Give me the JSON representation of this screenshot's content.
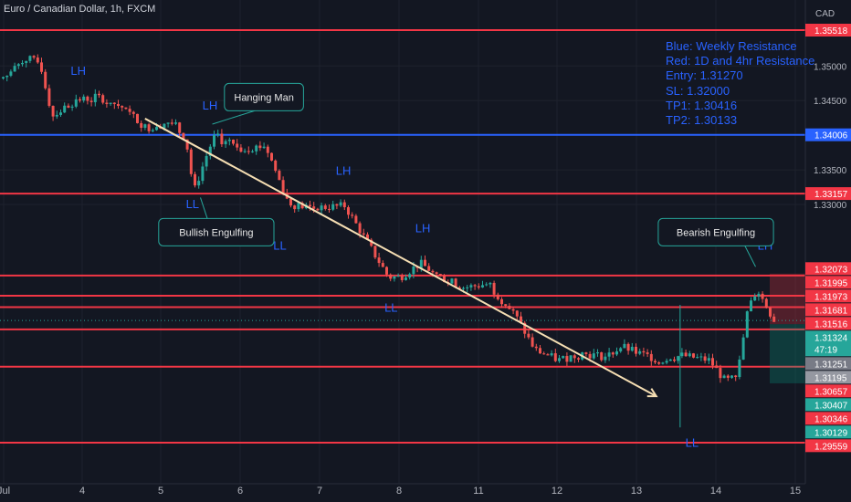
{
  "header": {
    "title": "Euro / Canadian Dollar, 1h, FXCM",
    "currency": "CAD"
  },
  "notes": [
    "Blue: Weekly Resistance",
    "Red: 1D and 4hr Resistance",
    "Entry: 1.31270",
    "SL: 1.32000",
    "TP1: 1.30416",
    "TP2: 1.30133"
  ],
  "colors": {
    "background": "#131722",
    "bull": "#26a69a",
    "bear": "#ef5350",
    "resistance_red": "#f23645",
    "resistance_blue": "#2962ff",
    "trendline": "#f5deb3",
    "callout_border": "#26a69a",
    "axis_text": "#b2b5be",
    "label_text": "#2962ff"
  },
  "chart_data": {
    "type": "candlestick",
    "symbol": "EURCAD",
    "timeframe": "1h",
    "x_ticks": [
      "Jul",
      "4",
      "5",
      "6",
      "7",
      "8",
      "11",
      "12",
      "13",
      "14",
      "15"
    ],
    "y_ticks": [
      "1.35000",
      "1.34500",
      "1.33500",
      "1.33000"
    ],
    "ylim": [
      1.2935,
      1.3585
    ],
    "horizontal_levels": [
      {
        "price": 1.35518,
        "color": "red"
      },
      {
        "price": 1.34006,
        "color": "blue"
      },
      {
        "price": 1.33157,
        "color": "red"
      },
      {
        "price": 1.31973,
        "color": "red"
      },
      {
        "price": 1.31681,
        "color": "red"
      },
      {
        "price": 1.31516,
        "color": "red"
      },
      {
        "price": 1.31195,
        "color": "red"
      },
      {
        "price": 1.30657,
        "color": "red"
      },
      {
        "price": 1.29559,
        "color": "red"
      }
    ],
    "price_labels": [
      {
        "text": "1.35518",
        "price": 1.35518,
        "bg": "#f23645"
      },
      {
        "text": "1.34006",
        "price": 1.34006,
        "bg": "#2962ff"
      },
      {
        "text": "1.33157",
        "price": 1.33157,
        "bg": "#f23645"
      },
      {
        "text": "1.32073",
        "price": 1.32073,
        "bg": "#f23645"
      },
      {
        "text": "1.31995",
        "price": 1.31995,
        "bg": "#f23645"
      },
      {
        "text": "1.31973",
        "price": 1.31973,
        "bg": "#f23645"
      },
      {
        "text": "1.31681",
        "price": 1.31681,
        "bg": "#f23645"
      },
      {
        "text": "1.31516",
        "price": 1.31516,
        "bg": "#f23645"
      },
      {
        "text": "1.31324",
        "price": 1.31324,
        "bg": "#26a69a",
        "sub": "47:19"
      },
      {
        "text": "1.31251",
        "price": 1.31251,
        "bg": "#787b86"
      },
      {
        "text": "1.31195",
        "price": 1.31195,
        "bg": "#9598a1"
      },
      {
        "text": "1.30657",
        "price": 1.30657,
        "bg": "#f23645"
      },
      {
        "text": "1.30407",
        "price": 1.30407,
        "bg": "#26a69a"
      },
      {
        "text": "1.30346",
        "price": 1.30346,
        "bg": "#f23645"
      },
      {
        "text": "1.30129",
        "price": 1.30129,
        "bg": "#26a69a"
      },
      {
        "text": "1.29559",
        "price": 1.29559,
        "bg": "#f23645"
      }
    ],
    "trend_labels": [
      {
        "text": "LH",
        "day": 0.95,
        "price": 1.3487
      },
      {
        "text": "LH",
        "day": 2.62,
        "price": 1.3437
      },
      {
        "text": "LL",
        "day": 2.4,
        "price": 1.3295
      },
      {
        "text": "LH",
        "day": 4.3,
        "price": 1.3343
      },
      {
        "text": "LL",
        "day": 3.5,
        "price": 1.3235
      },
      {
        "text": "LH",
        "day": 5.3,
        "price": 1.326
      },
      {
        "text": "LL",
        "day": 4.9,
        "price": 1.3145
      },
      {
        "text": "LH",
        "day": 9.62,
        "price": 1.3235
      },
      {
        "text": "LL",
        "day": 8.7,
        "price": 1.295
      }
    ],
    "callouts": [
      {
        "text": "Hanging Man",
        "day": 3.3,
        "price": 1.3455
      },
      {
        "text": "Bullish Engulfing",
        "day": 2.7,
        "price": 1.326
      },
      {
        "text": "Bearish Engulfing",
        "day": 9.0,
        "price": 1.326
      }
    ],
    "trendline": {
      "from": {
        "day": 1.8,
        "price": 1.3424
      },
      "to": {
        "day": 8.25,
        "price": 1.3023
      }
    },
    "position": {
      "entry": 1.3127,
      "stop_loss": 1.32,
      "take_profit": 1.30416
    },
    "candle_path": [
      [
        0.0,
        1.3482
      ],
      [
        0.25,
        1.3512
      ],
      [
        0.45,
        1.3503
      ],
      [
        0.6,
        1.3428
      ],
      [
        0.9,
        1.345
      ],
      [
        1.2,
        1.3455
      ],
      [
        1.5,
        1.344
      ],
      [
        1.8,
        1.341
      ],
      [
        2.1,
        1.342
      ],
      [
        2.3,
        1.3395
      ],
      [
        2.4,
        1.3318
      ],
      [
        2.55,
        1.3368
      ],
      [
        2.65,
        1.3397
      ],
      [
        3.0,
        1.338
      ],
      [
        3.3,
        1.3385
      ],
      [
        3.6,
        1.33
      ],
      [
        3.9,
        1.3295
      ],
      [
        4.3,
        1.3298
      ],
      [
        4.6,
        1.3242
      ],
      [
        4.85,
        1.3195
      ],
      [
        5.0,
        1.3195
      ],
      [
        5.25,
        1.3215
      ],
      [
        5.5,
        1.3195
      ],
      [
        5.8,
        1.318
      ],
      [
        6.1,
        1.3185
      ],
      [
        6.45,
        1.314
      ],
      [
        6.7,
        1.309
      ],
      [
        7.0,
        1.3075
      ],
      [
        7.3,
        1.3085
      ],
      [
        7.6,
        1.308
      ],
      [
        7.8,
        1.3095
      ],
      [
        8.0,
        1.3085
      ],
      [
        8.3,
        1.3075
      ],
      [
        8.55,
        1.3082
      ],
      [
        8.9,
        1.3075
      ],
      [
        9.1,
        1.3045
      ],
      [
        9.25,
        1.305
      ],
      [
        9.38,
        1.3145
      ],
      [
        9.5,
        1.3178
      ],
      [
        9.62,
        1.3152
      ],
      [
        9.72,
        1.3132
      ]
    ]
  }
}
